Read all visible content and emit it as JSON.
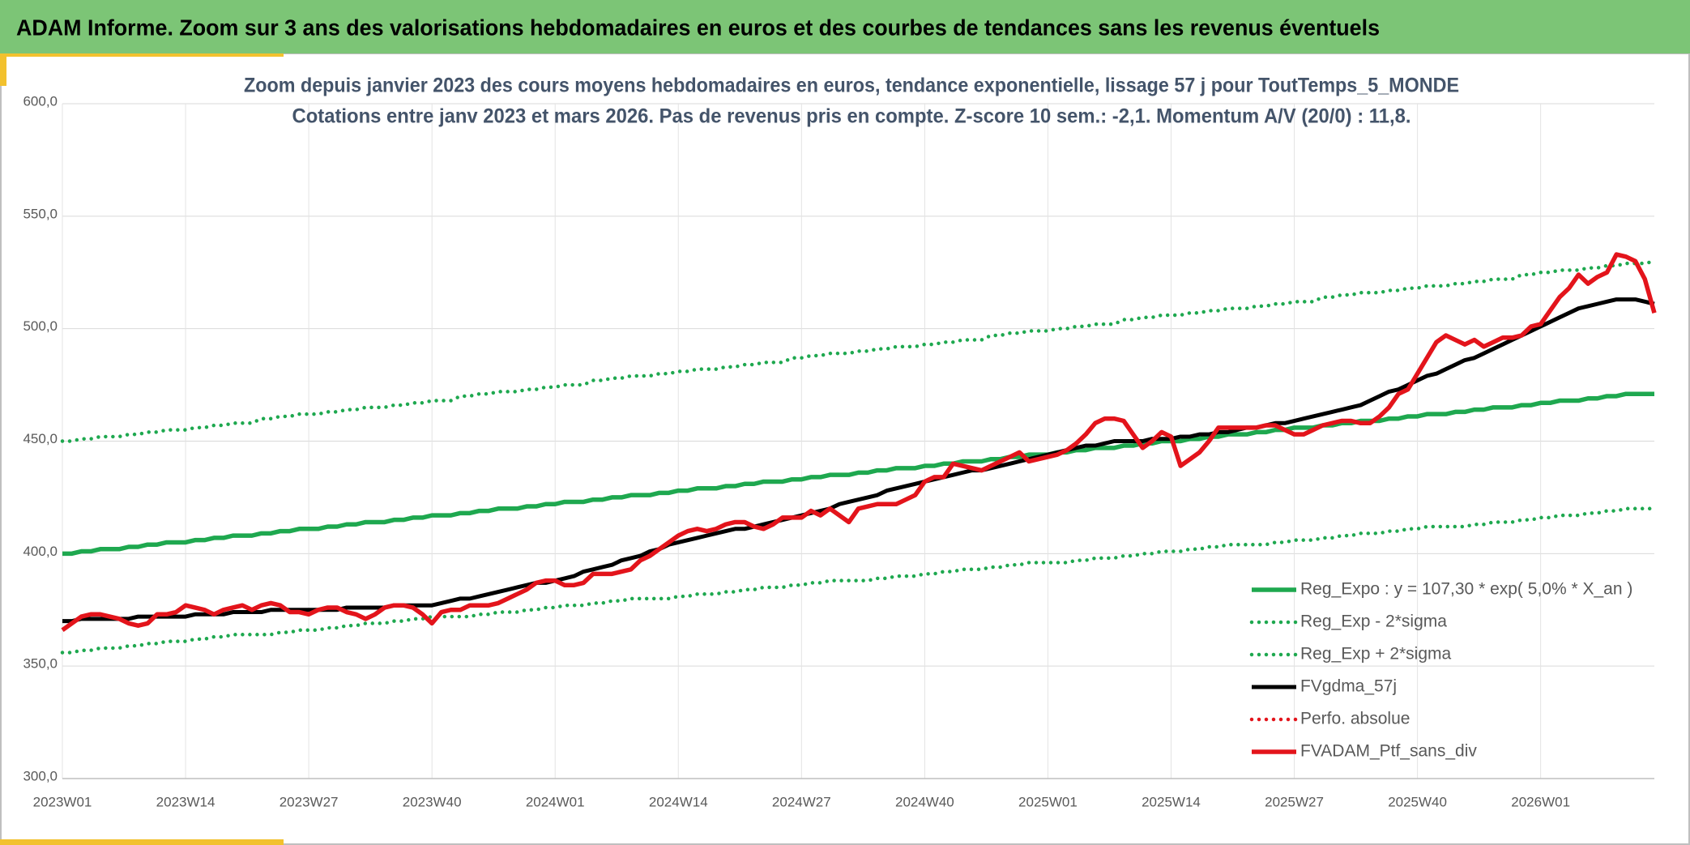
{
  "header": {
    "title": "ADAM Informe. Zoom sur 3 ans des valorisations hebdomadaires en euros et des courbes de tendances sans les revenus éventuels"
  },
  "chart_data": {
    "type": "line",
    "title": "Zoom depuis janvier 2023 des cours moyens hebdomadaires en euros, tendance exponentielle, lissage 57 j pour ToutTemps_5_MONDE",
    "subtitle": "Cotations entre janv 2023 et mars 2026. Pas de revenus pris en compte. Z-score 10 sem.: -2,1. Momentum A/V (20/0) : 11,8.",
    "grid": true,
    "legend": "bottom-right",
    "ylim": [
      300,
      600
    ],
    "yticks": [
      {
        "value": 300,
        "label": "300,0"
      },
      {
        "value": 350,
        "label": "350,0"
      },
      {
        "value": 400,
        "label": "400,0"
      },
      {
        "value": 450,
        "label": "450,0"
      },
      {
        "value": 500,
        "label": "500,0"
      },
      {
        "value": 550,
        "label": "550,0"
      },
      {
        "value": 600,
        "label": "600,0"
      }
    ],
    "categories": [
      "2023W01",
      null,
      null,
      null,
      null,
      null,
      null,
      null,
      null,
      null,
      null,
      null,
      null,
      "2023W14",
      null,
      null,
      null,
      null,
      null,
      null,
      null,
      null,
      null,
      null,
      null,
      null,
      "2023W27",
      null,
      null,
      null,
      null,
      null,
      null,
      null,
      null,
      null,
      null,
      null,
      null,
      "2023W40",
      null,
      null,
      null,
      null,
      null,
      null,
      null,
      null,
      null,
      null,
      null,
      null,
      "2024W01",
      null,
      null,
      null,
      null,
      null,
      null,
      null,
      null,
      null,
      null,
      null,
      null,
      "2024W14",
      null,
      null,
      null,
      null,
      null,
      null,
      null,
      null,
      null,
      null,
      null,
      null,
      "2024W27",
      null,
      null,
      null,
      null,
      null,
      null,
      null,
      null,
      null,
      null,
      null,
      null,
      "2024W40",
      null,
      null,
      null,
      null,
      null,
      null,
      null,
      null,
      null,
      null,
      null,
      null,
      "2025W01",
      null,
      null,
      null,
      null,
      null,
      null,
      null,
      null,
      null,
      null,
      null,
      null,
      "2025W14",
      null,
      null,
      null,
      null,
      null,
      null,
      null,
      null,
      null,
      null,
      null,
      null,
      "2025W27",
      null,
      null,
      null,
      null,
      null,
      null,
      null,
      null,
      null,
      null,
      null,
      null,
      "2025W40",
      null,
      null,
      null,
      null,
      null,
      null,
      null,
      null,
      null,
      null,
      null,
      null,
      "2026W01",
      null,
      null,
      null,
      null,
      null,
      null,
      null,
      null,
      null,
      null,
      null,
      null
    ],
    "series": [
      {
        "name": "Reg_Expo : y = 107,30 * exp( 5,0% *  X_an )",
        "color": "#1ea84f",
        "style": "solid",
        "values": [
          400,
          400,
          401,
          401,
          402,
          402,
          402,
          403,
          403,
          404,
          404,
          405,
          405,
          405,
          406,
          406,
          407,
          407,
          408,
          408,
          408,
          409,
          409,
          410,
          410,
          411,
          411,
          411,
          412,
          412,
          413,
          413,
          414,
          414,
          414,
          415,
          415,
          416,
          416,
          417,
          417,
          417,
          418,
          418,
          419,
          419,
          420,
          420,
          420,
          421,
          421,
          422,
          422,
          423,
          423,
          423,
          424,
          424,
          425,
          425,
          426,
          426,
          426,
          427,
          427,
          428,
          428,
          429,
          429,
          429,
          430,
          430,
          431,
          431,
          432,
          432,
          432,
          433,
          433,
          434,
          434,
          435,
          435,
          435,
          436,
          436,
          437,
          437,
          438,
          438,
          438,
          439,
          439,
          440,
          440,
          441,
          441,
          441,
          442,
          442,
          443,
          443,
          444,
          444,
          444,
          445,
          445,
          446,
          446,
          447,
          447,
          447,
          448,
          448,
          449,
          449,
          450,
          450,
          450,
          451,
          451,
          452,
          452,
          453,
          453,
          453,
          454,
          454,
          455,
          455,
          456,
          456,
          456,
          457,
          457,
          458,
          458,
          459,
          459,
          459,
          460,
          460,
          461,
          461,
          462,
          462,
          462,
          463,
          463,
          464,
          464,
          465,
          465,
          465,
          466,
          466,
          467,
          467,
          468,
          468,
          468,
          469,
          469,
          470,
          470,
          471,
          471,
          471,
          471
        ]
      },
      {
        "name": "Reg_Exp - 2*sigma",
        "color": "#1ea84f",
        "style": "dotted",
        "values": [
          356,
          356,
          357,
          357,
          358,
          358,
          358,
          359,
          359,
          360,
          360,
          361,
          361,
          361,
          362,
          362,
          363,
          363,
          364,
          364,
          364,
          364,
          364,
          365,
          365,
          366,
          366,
          366,
          367,
          367,
          368,
          368,
          369,
          369,
          369,
          370,
          370,
          371,
          371,
          372,
          372,
          372,
          372,
          372,
          373,
          373,
          374,
          374,
          374,
          375,
          375,
          376,
          376,
          377,
          377,
          377,
          378,
          378,
          379,
          379,
          380,
          380,
          380,
          380,
          380,
          381,
          381,
          382,
          382,
          382,
          383,
          383,
          384,
          384,
          385,
          385,
          385,
          386,
          386,
          387,
          387,
          388,
          388,
          388,
          388,
          388,
          389,
          389,
          390,
          390,
          390,
          391,
          391,
          392,
          392,
          393,
          393,
          393,
          394,
          394,
          395,
          395,
          396,
          396,
          396,
          396,
          396,
          397,
          397,
          398,
          398,
          398,
          399,
          399,
          400,
          400,
          401,
          401,
          401,
          402,
          402,
          403,
          403,
          404,
          404,
          404,
          404,
          404,
          405,
          405,
          406,
          406,
          406,
          407,
          407,
          408,
          408,
          409,
          409,
          409,
          410,
          410,
          411,
          411,
          412,
          412,
          412,
          412,
          412,
          413,
          413,
          414,
          414,
          414,
          415,
          415,
          416,
          416,
          417,
          417,
          417,
          418,
          418,
          419,
          419,
          420,
          420,
          420,
          420
        ]
      },
      {
        "name": "Reg_Exp + 2*sigma",
        "color": "#1ea84f",
        "style": "dotted",
        "values": [
          450,
          450,
          451,
          451,
          452,
          452,
          452,
          453,
          453,
          454,
          454,
          455,
          455,
          455,
          456,
          456,
          457,
          457,
          458,
          458,
          458,
          460,
          460,
          461,
          461,
          462,
          462,
          462,
          463,
          463,
          464,
          464,
          465,
          465,
          465,
          466,
          466,
          467,
          467,
          468,
          468,
          468,
          470,
          470,
          471,
          471,
          472,
          472,
          472,
          473,
          473,
          474,
          474,
          475,
          475,
          475,
          477,
          477,
          478,
          478,
          479,
          479,
          479,
          480,
          480,
          481,
          481,
          482,
          482,
          482,
          483,
          483,
          484,
          484,
          485,
          485,
          485,
          487,
          487,
          488,
          488,
          489,
          489,
          489,
          490,
          490,
          491,
          491,
          492,
          492,
          492,
          493,
          493,
          494,
          494,
          495,
          495,
          495,
          497,
          497,
          498,
          498,
          499,
          499,
          499,
          500,
          500,
          501,
          501,
          502,
          502,
          502,
          504,
          504,
          505,
          505,
          506,
          506,
          506,
          507,
          507,
          508,
          508,
          509,
          509,
          509,
          510,
          510,
          511,
          511,
          512,
          512,
          512,
          514,
          514,
          515,
          515,
          516,
          516,
          516,
          517,
          517,
          518,
          518,
          519,
          519,
          519,
          520,
          520,
          521,
          521,
          522,
          522,
          522,
          524,
          524,
          525,
          525,
          526,
          526,
          526,
          527,
          527,
          528,
          528,
          529,
          529,
          529,
          530
        ]
      },
      {
        "name": "FVgdma_57j",
        "color": "#000000",
        "style": "solid",
        "values": [
          370,
          370,
          371,
          371,
          371,
          371,
          371,
          371,
          372,
          372,
          372,
          372,
          372,
          372,
          373,
          373,
          373,
          373,
          374,
          374,
          374,
          374,
          375,
          375,
          375,
          375,
          375,
          375,
          375,
          375,
          376,
          376,
          376,
          376,
          376,
          377,
          377,
          377,
          377,
          377,
          378,
          379,
          380,
          380,
          381,
          382,
          383,
          384,
          385,
          386,
          387,
          387,
          388,
          389,
          390,
          392,
          393,
          394,
          395,
          397,
          398,
          399,
          401,
          402,
          404,
          405,
          406,
          407,
          408,
          409,
          410,
          411,
          411,
          412,
          413,
          414,
          415,
          416,
          417,
          418,
          419,
          420,
          422,
          423,
          424,
          425,
          426,
          428,
          429,
          430,
          431,
          432,
          433,
          434,
          435,
          436,
          437,
          437,
          438,
          439,
          440,
          441,
          442,
          443,
          444,
          445,
          446,
          447,
          448,
          448,
          449,
          450,
          450,
          450,
          450,
          451,
          451,
          451,
          452,
          452,
          453,
          453,
          454,
          454,
          455,
          456,
          456,
          457,
          458,
          458,
          459,
          460,
          461,
          462,
          463,
          464,
          465,
          466,
          468,
          470,
          472,
          473,
          475,
          477,
          479,
          480,
          482,
          484,
          486,
          487,
          489,
          491,
          493,
          495,
          497,
          499,
          501,
          503,
          505,
          507,
          509,
          510,
          511,
          512,
          513,
          513,
          513,
          512,
          511
        ]
      },
      {
        "name": "Perfo. absolue",
        "color": "#e3141b",
        "style": "dotted",
        "values": [
          null,
          null,
          null,
          null,
          null,
          null,
          null,
          null,
          null,
          null,
          null,
          null,
          null,
          null,
          null,
          null,
          null,
          null,
          null,
          null,
          null,
          null,
          null,
          null,
          null,
          null,
          null,
          null,
          null,
          null,
          null,
          null,
          null,
          null,
          null,
          null,
          null,
          null,
          null,
          null,
          null,
          null,
          null,
          null,
          null,
          null,
          null,
          null,
          null,
          null,
          null,
          null,
          null,
          null,
          null,
          null,
          null,
          null,
          null,
          null,
          null,
          null,
          null,
          null,
          null,
          null,
          null,
          null,
          null,
          null,
          null,
          null,
          null,
          null,
          null,
          null,
          null,
          null,
          null,
          null,
          null,
          null,
          null,
          null,
          null,
          null,
          null,
          null,
          null,
          null,
          null,
          null,
          null,
          null,
          null,
          null,
          null,
          null,
          null,
          null,
          null,
          null,
          null,
          null,
          null,
          null,
          null,
          null,
          null,
          null,
          null,
          null,
          null,
          null,
          null,
          null,
          null,
          null,
          null,
          null,
          null,
          null,
          null,
          null,
          null,
          null,
          null,
          null,
          null,
          null,
          null,
          null,
          null,
          null,
          null,
          null,
          null,
          null,
          null,
          null,
          null,
          null,
          null,
          null,
          null,
          null,
          null,
          null,
          null,
          null,
          null,
          null,
          null,
          null,
          null,
          null,
          null,
          null,
          null,
          null,
          null,
          null,
          null,
          null,
          null,
          null,
          null,
          null,
          null
        ]
      },
      {
        "name": "FVADAM_Ptf_sans_div",
        "color": "#e3141b",
        "style": "solid",
        "values": [
          366,
          369,
          372,
          373,
          373,
          372,
          371,
          369,
          368,
          369,
          373,
          373,
          374,
          377,
          376,
          375,
          373,
          375,
          376,
          377,
          375,
          377,
          378,
          377,
          374,
          374,
          373,
          375,
          376,
          376,
          374,
          373,
          371,
          373,
          376,
          377,
          377,
          376,
          373,
          369,
          374,
          375,
          375,
          377,
          377,
          377,
          378,
          380,
          382,
          384,
          387,
          388,
          388,
          386,
          386,
          387,
          391,
          391,
          391,
          392,
          393,
          397,
          399,
          402,
          405,
          408,
          410,
          411,
          410,
          411,
          413,
          414,
          414,
          412,
          411,
          413,
          416,
          416,
          416,
          419,
          417,
          420,
          417,
          414,
          420,
          421,
          422,
          422,
          422,
          424,
          426,
          432,
          434,
          434,
          440,
          439,
          438,
          437,
          439,
          441,
          443,
          445,
          441,
          442,
          443,
          444,
          446,
          449,
          453,
          458,
          460,
          460,
          459,
          453,
          447,
          450,
          454,
          452,
          439,
          442,
          445,
          450,
          456,
          456,
          456,
          456,
          456,
          457,
          457,
          455,
          453,
          453,
          455,
          457,
          458,
          459,
          459,
          458,
          458,
          461,
          465,
          471,
          473,
          480,
          487,
          494,
          497,
          495,
          493,
          495,
          492,
          494,
          496,
          496,
          497,
          501,
          502,
          508,
          514,
          518,
          524,
          520,
          523,
          525,
          533,
          532,
          530,
          522,
          507
        ]
      }
    ]
  }
}
